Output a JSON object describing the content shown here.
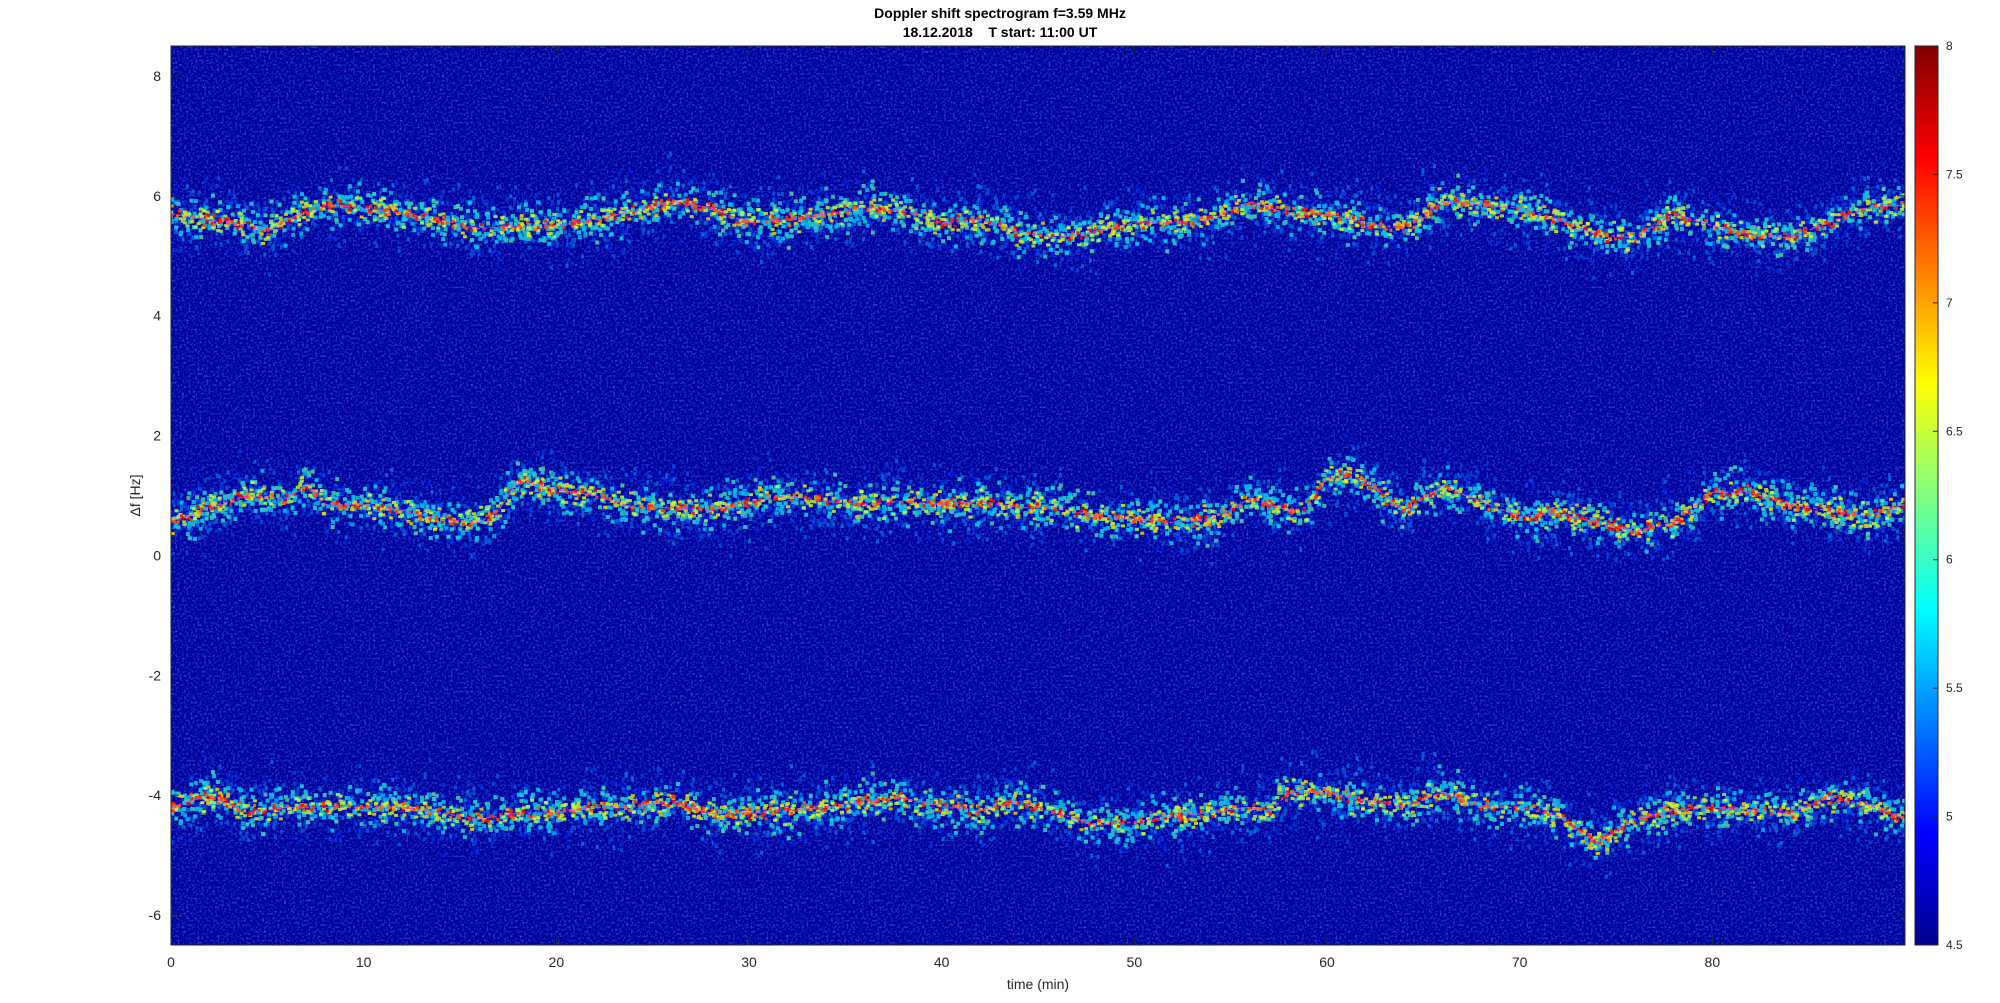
{
  "chart_data": {
    "type": "heatmap",
    "title": "Doppler shift spectrogram f=3.59 MHz",
    "subtitle": "18.12.2018    T start: 11:00 UT",
    "xlabel": "time (min)",
    "ylabel": "Δf [Hz]",
    "xlim": [
      0,
      90
    ],
    "ylim": [
      -6.5,
      8.5
    ],
    "x_ticks": [
      0,
      10,
      20,
      30,
      40,
      50,
      60,
      70,
      80
    ],
    "x_tick_labels": [
      "0",
      "10",
      "20",
      "30",
      "40",
      "50",
      "60",
      "70",
      "80"
    ],
    "y_ticks": [
      -6,
      -4,
      -2,
      0,
      2,
      4,
      6,
      8
    ],
    "y_tick_labels": [
      "-6",
      "-4",
      "-2",
      "0",
      "2",
      "4",
      "6",
      "8"
    ],
    "colormap": "jet",
    "colorbar": {
      "range": [
        4.5,
        8
      ],
      "ticks": [
        4.5,
        5,
        5.5,
        6,
        6.5,
        7,
        7.5,
        8
      ],
      "tick_labels": [
        "4.5",
        "5",
        "5.5",
        "6",
        "6.5",
        "7",
        "7.5",
        "8"
      ]
    },
    "background_level": 4.7,
    "traces": [
      {
        "band": "upper",
        "line_color": "#e040e0",
        "time": [
          0,
          2,
          4,
          5,
          6,
          8,
          10,
          12,
          14,
          16,
          18,
          20,
          22,
          24,
          26,
          28,
          30,
          32,
          34,
          36,
          38,
          40,
          42,
          44,
          46,
          48,
          50,
          52,
          54,
          56,
          58,
          60,
          62,
          64,
          66,
          68,
          70,
          72,
          74,
          76,
          78,
          80,
          82,
          84,
          86,
          88,
          90
        ],
        "df": [
          5.7,
          5.6,
          5.5,
          5.4,
          5.6,
          5.85,
          5.8,
          5.7,
          5.6,
          5.45,
          5.5,
          5.5,
          5.6,
          5.75,
          5.9,
          5.8,
          5.55,
          5.6,
          5.7,
          5.8,
          5.75,
          5.55,
          5.6,
          5.4,
          5.3,
          5.4,
          5.55,
          5.55,
          5.6,
          5.9,
          5.7,
          5.7,
          5.55,
          5.45,
          5.9,
          5.85,
          5.8,
          5.6,
          5.35,
          5.3,
          5.7,
          5.5,
          5.35,
          5.3,
          5.55,
          5.8,
          5.85
        ]
      },
      {
        "band": "middle",
        "line_color": "#e040e0",
        "time": [
          0,
          2,
          4,
          6,
          7,
          8,
          10,
          12,
          14,
          16,
          17,
          18,
          20,
          22,
          24,
          26,
          28,
          30,
          32,
          34,
          36,
          38,
          40,
          42,
          44,
          46,
          48,
          50,
          52,
          54,
          56,
          58,
          59,
          60,
          61,
          62,
          64,
          66,
          68,
          70,
          72,
          74,
          76,
          78,
          80,
          82,
          84,
          86,
          88,
          90
        ],
        "df": [
          0.55,
          0.8,
          1.0,
          0.95,
          1.15,
          0.85,
          0.85,
          0.75,
          0.6,
          0.55,
          0.75,
          1.25,
          1.1,
          1.0,
          0.8,
          0.8,
          0.75,
          0.9,
          1.0,
          0.9,
          0.85,
          0.9,
          0.85,
          0.9,
          0.8,
          0.8,
          0.65,
          0.6,
          0.55,
          0.6,
          0.95,
          0.75,
          0.8,
          1.3,
          1.35,
          1.25,
          0.75,
          1.15,
          0.9,
          0.65,
          0.7,
          0.55,
          0.4,
          0.55,
          1.05,
          1.05,
          0.85,
          0.75,
          0.65,
          0.85
        ]
      },
      {
        "band": "lower",
        "line_color": "#e040e0",
        "time": [
          0,
          2,
          4,
          6,
          8,
          10,
          12,
          14,
          16,
          18,
          20,
          22,
          24,
          26,
          28,
          30,
          32,
          34,
          36,
          38,
          40,
          42,
          44,
          46,
          48,
          50,
          52,
          54,
          56,
          57,
          58,
          60,
          62,
          64,
          66,
          68,
          70,
          72,
          73,
          74,
          76,
          78,
          80,
          82,
          84,
          86,
          88,
          90
        ],
        "df": [
          -4.2,
          -4.0,
          -4.3,
          -4.2,
          -4.2,
          -4.2,
          -4.2,
          -4.3,
          -4.4,
          -4.3,
          -4.3,
          -4.2,
          -4.2,
          -4.1,
          -4.3,
          -4.3,
          -4.25,
          -4.2,
          -4.1,
          -4.05,
          -4.2,
          -4.25,
          -4.1,
          -4.3,
          -4.5,
          -4.45,
          -4.35,
          -4.3,
          -4.2,
          -4.3,
          -3.95,
          -3.95,
          -4.1,
          -4.2,
          -3.95,
          -4.2,
          -4.2,
          -4.35,
          -4.6,
          -4.8,
          -4.4,
          -4.25,
          -4.2,
          -4.25,
          -4.3,
          -4.05,
          -4.15,
          -4.4
        ]
      }
    ]
  }
}
